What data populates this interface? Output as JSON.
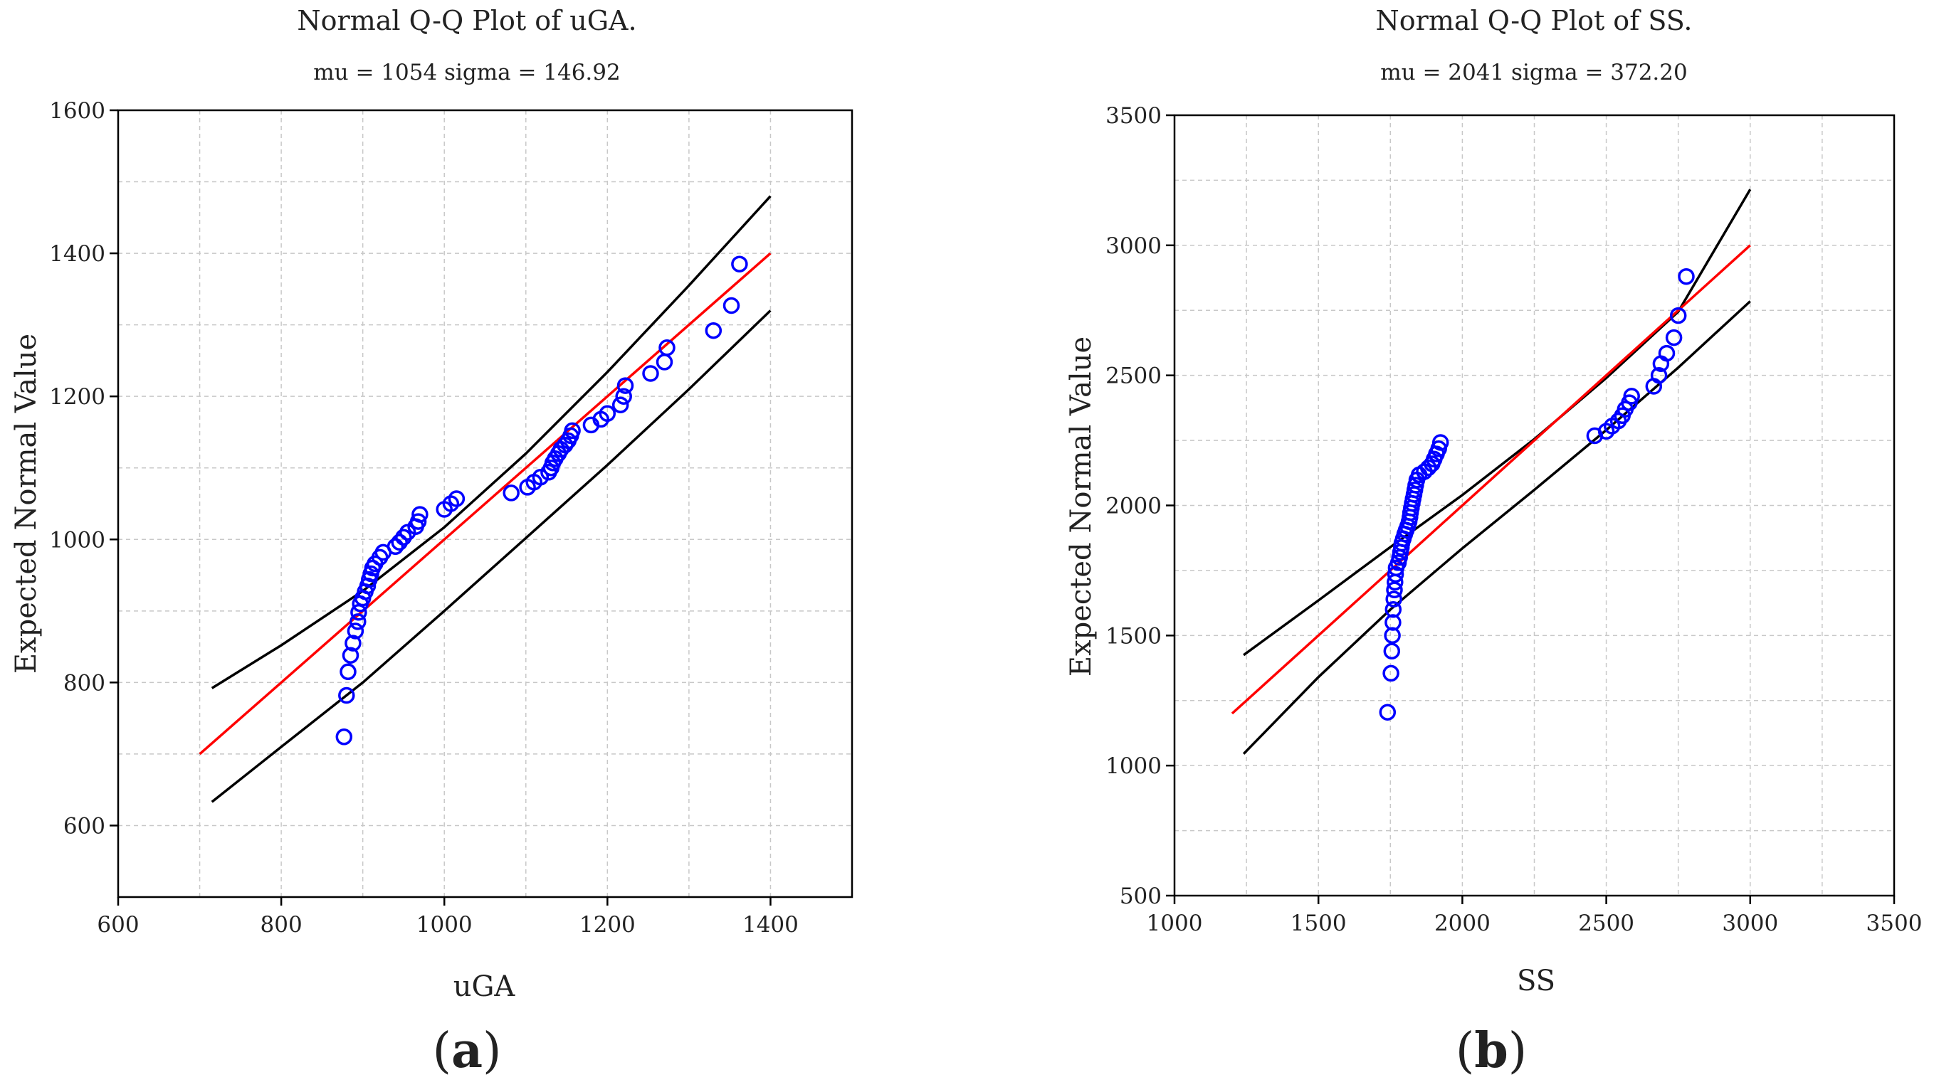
{
  "chart_data": [
    {
      "type": "scatter",
      "panel_label": "a",
      "title": "Normal Q-Q Plot of uGA.",
      "subtitle": "mu = 1054  sigma = 146.92",
      "xlabel": "uGA",
      "ylabel": "Expected Normal Value",
      "xlim": [
        600,
        1500
      ],
      "ylim": [
        500,
        1600
      ],
      "xticks": [
        600,
        800,
        1000,
        1200,
        1400
      ],
      "yticks": [
        600,
        800,
        1000,
        1200,
        1400,
        1600
      ],
      "grid": true,
      "colors": {
        "points": "#0000ff",
        "reference": "#ff0000",
        "bands": "#000000",
        "grid": "#c8c8c8"
      },
      "reference_line": [
        [
          700,
          700
        ],
        [
          1400,
          1400
        ]
      ],
      "upper_band": [
        [
          715,
          792
        ],
        [
          800,
          852
        ],
        [
          900,
          928
        ],
        [
          1000,
          1017
        ],
        [
          1100,
          1120
        ],
        [
          1200,
          1234
        ],
        [
          1300,
          1355
        ],
        [
          1400,
          1480
        ]
      ],
      "lower_band": [
        [
          715,
          633
        ],
        [
          800,
          710
        ],
        [
          900,
          800
        ],
        [
          1000,
          900
        ],
        [
          1100,
          1002
        ],
        [
          1200,
          1104
        ],
        [
          1300,
          1210
        ],
        [
          1400,
          1320
        ]
      ],
      "points": [
        [
          877,
          724
        ],
        [
          880,
          782
        ],
        [
          882,
          815
        ],
        [
          885,
          838
        ],
        [
          888,
          855
        ],
        [
          891,
          872
        ],
        [
          894,
          885
        ],
        [
          895,
          898
        ],
        [
          897,
          910
        ],
        [
          900,
          918
        ],
        [
          903,
          927
        ],
        [
          906,
          935
        ],
        [
          908,
          944
        ],
        [
          910,
          952
        ],
        [
          912,
          960
        ],
        [
          915,
          966
        ],
        [
          921,
          975
        ],
        [
          925,
          982
        ],
        [
          940,
          990
        ],
        [
          945,
          996
        ],
        [
          950,
          1003
        ],
        [
          955,
          1010
        ],
        [
          965,
          1018
        ],
        [
          968,
          1025
        ],
        [
          970,
          1035
        ],
        [
          1000,
          1042
        ],
        [
          1008,
          1050
        ],
        [
          1015,
          1057
        ],
        [
          1082,
          1065
        ],
        [
          1102,
          1073
        ],
        [
          1110,
          1080
        ],
        [
          1118,
          1087
        ],
        [
          1128,
          1094
        ],
        [
          1131,
          1100
        ],
        [
          1133,
          1107
        ],
        [
          1136,
          1113
        ],
        [
          1140,
          1120
        ],
        [
          1143,
          1126
        ],
        [
          1148,
          1132
        ],
        [
          1152,
          1138
        ],
        [
          1155,
          1145
        ],
        [
          1157,
          1152
        ],
        [
          1180,
          1160
        ],
        [
          1192,
          1168
        ],
        [
          1200,
          1176
        ],
        [
          1216,
          1188
        ],
        [
          1220,
          1200
        ],
        [
          1222,
          1215
        ],
        [
          1253,
          1232
        ],
        [
          1270,
          1248
        ],
        [
          1273,
          1268
        ],
        [
          1330,
          1292
        ],
        [
          1352,
          1327
        ],
        [
          1362,
          1385
        ]
      ]
    },
    {
      "type": "scatter",
      "panel_label": "b",
      "title": "Normal Q-Q Plot of SS.",
      "subtitle": "mu = 2041  sigma = 372.20",
      "xlabel": "SS",
      "ylabel": "Expected Normal Value",
      "xlim": [
        1000,
        3500
      ],
      "ylim": [
        500,
        3500
      ],
      "xticks": [
        1000,
        1500,
        2000,
        2500,
        3000,
        3500
      ],
      "yticks": [
        500,
        1000,
        1500,
        2000,
        2500,
        3000,
        3500
      ],
      "grid": true,
      "colors": {
        "points": "#0000ff",
        "reference": "#ff0000",
        "bands": "#000000",
        "grid": "#c8c8c8"
      },
      "reference_line": [
        [
          1200,
          1200
        ],
        [
          3000,
          3000
        ]
      ],
      "upper_band": [
        [
          1240,
          1425
        ],
        [
          1500,
          1635
        ],
        [
          1750,
          1840
        ],
        [
          2000,
          2040
        ],
        [
          2250,
          2255
        ],
        [
          2500,
          2490
        ],
        [
          2750,
          2745
        ],
        [
          3000,
          3215
        ]
      ],
      "lower_band": [
        [
          1240,
          1045
        ],
        [
          1500,
          1340
        ],
        [
          1750,
          1600
        ],
        [
          2000,
          1835
        ],
        [
          2250,
          2060
        ],
        [
          2500,
          2290
        ],
        [
          2750,
          2530
        ],
        [
          3000,
          2785
        ]
      ],
      "points": [
        [
          1740,
          1205
        ],
        [
          1752,
          1355
        ],
        [
          1755,
          1440
        ],
        [
          1757,
          1500
        ],
        [
          1759,
          1550
        ],
        [
          1760,
          1600
        ],
        [
          1762,
          1640
        ],
        [
          1764,
          1675
        ],
        [
          1766,
          1705
        ],
        [
          1768,
          1735
        ],
        [
          1770,
          1760
        ],
        [
          1778,
          1780
        ],
        [
          1782,
          1800
        ],
        [
          1785,
          1820
        ],
        [
          1788,
          1838
        ],
        [
          1790,
          1855
        ],
        [
          1795,
          1872
        ],
        [
          1800,
          1890
        ],
        [
          1805,
          1905
        ],
        [
          1810,
          1920
        ],
        [
          1815,
          1938
        ],
        [
          1818,
          1955
        ],
        [
          1820,
          1972
        ],
        [
          1823,
          1990
        ],
        [
          1826,
          2008
        ],
        [
          1829,
          2025
        ],
        [
          1832,
          2042
        ],
        [
          1835,
          2060
        ],
        [
          1838,
          2078
        ],
        [
          1842,
          2098
        ],
        [
          1850,
          2118
        ],
        [
          1868,
          2130
        ],
        [
          1882,
          2145
        ],
        [
          1895,
          2160
        ],
        [
          1902,
          2178
        ],
        [
          1910,
          2198
        ],
        [
          1918,
          2218
        ],
        [
          1924,
          2242
        ],
        [
          2460,
          2268
        ],
        [
          2500,
          2285
        ],
        [
          2520,
          2305
        ],
        [
          2542,
          2325
        ],
        [
          2556,
          2345
        ],
        [
          2566,
          2370
        ],
        [
          2580,
          2395
        ],
        [
          2588,
          2420
        ],
        [
          2665,
          2458
        ],
        [
          2683,
          2500
        ],
        [
          2690,
          2545
        ],
        [
          2710,
          2585
        ],
        [
          2735,
          2645
        ],
        [
          2750,
          2730
        ],
        [
          2778,
          2880
        ]
      ]
    }
  ]
}
